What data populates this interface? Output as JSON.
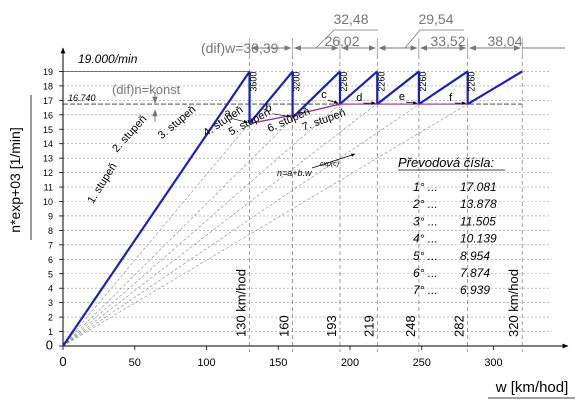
{
  "chart_data": {
    "type": "line",
    "ylabel": "n*exp+03 [1/min]",
    "xlabel": "w [km/hod]",
    "xlim": [
      0,
      340
    ],
    "ylim": [
      0,
      19.5
    ],
    "x_ticks": [
      0,
      50,
      100,
      150,
      200,
      250,
      300
    ],
    "y_ticks": [
      0,
      1,
      2,
      3,
      4,
      5,
      6,
      7,
      8,
      9,
      10,
      11,
      12,
      13,
      14,
      15,
      16,
      17,
      18,
      19
    ],
    "colors": {
      "sawtooth": "#1a24a6",
      "rays": "#888888",
      "dimensions": "#777777",
      "purple_curve": "#8c2a8c"
    },
    "max_rpm_label": "19.000/min",
    "ref_rpm_label": "16.740",
    "dif_n_label": "(dif)n=konst",
    "dif_w_label": "(dif)w=30,39",
    "formula": {
      "lhs": "n=a+b.w",
      "exp": "cxp(c)"
    },
    "ratio_title": "Převodová čísla:",
    "ratios": [
      {
        "gear": "1° ...",
        "value": "17.081"
      },
      {
        "gear": "2° ...",
        "value": "13.878"
      },
      {
        "gear": "3° ...",
        "value": "11.505"
      },
      {
        "gear": "4° ...",
        "value": "10.139"
      },
      {
        "gear": "5° ...",
        "value": "8.954"
      },
      {
        "gear": "6° ...",
        "value": "7.874"
      },
      {
        "gear": "7° ...",
        "value": "6.939"
      }
    ],
    "gears": [
      {
        "label": "1. stupeň",
        "x_end": 130,
        "y_end": 19
      },
      {
        "label": "2. stupeň",
        "x_start": 130,
        "y_start": 15.4,
        "x_end": 160,
        "y_end": 19
      },
      {
        "label": "3. stupeň",
        "x_start": 160,
        "y_start": 15.8,
        "x_end": 193,
        "y_end": 19
      },
      {
        "label": "4. stupeň",
        "x_start": 193,
        "y_start": 16.74,
        "x_end": 219,
        "y_end": 19
      },
      {
        "label": "5. stupeň",
        "x_start": 219,
        "y_start": 16.74,
        "x_end": 248,
        "y_end": 19
      },
      {
        "label": "6. stupeň",
        "x_start": 248,
        "y_start": 16.74,
        "x_end": 282,
        "y_end": 19
      },
      {
        "label": "7. stupeň",
        "x_start": 282,
        "y_start": 16.74,
        "x_end": 320,
        "y_end": 19
      }
    ],
    "shift_speeds": [
      {
        "x": 130,
        "label": "130 km/hod"
      },
      {
        "x": 160,
        "label": "160"
      },
      {
        "x": 193,
        "label": "193"
      },
      {
        "x": 219,
        "label": "219"
      },
      {
        "x": 248,
        "label": "248"
      },
      {
        "x": 282,
        "label": "282"
      },
      {
        "x": 320,
        "label": "320 km/hod"
      }
    ],
    "drops": [
      "3600",
      "3200",
      "2260",
      "2260",
      "2260",
      "2260"
    ],
    "points": [
      {
        "label": "a",
        "x": 130,
        "y": 15.4
      },
      {
        "label": "b",
        "x": 160,
        "y": 15.8
      },
      {
        "label": "c",
        "x": 193,
        "y": 16.74
      },
      {
        "label": "d",
        "x": 219,
        "y": 16.74
      },
      {
        "label": "e",
        "x": 248,
        "y": 16.74
      },
      {
        "label": "f",
        "x": 282,
        "y": 16.74
      }
    ],
    "interval_labels": [
      "32,48",
      "26,02",
      "29,54",
      "33,52",
      "38,04"
    ]
  }
}
